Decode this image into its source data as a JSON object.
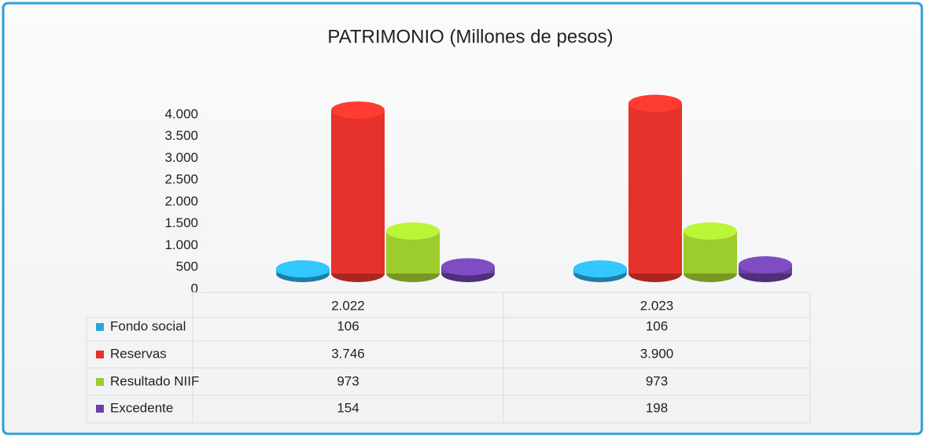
{
  "chart_data": {
    "type": "bar",
    "title": "PATRIMONIO (Millones de pesos)",
    "categories": [
      "2.022",
      "2.023"
    ],
    "series": [
      {
        "name": "Fondo social",
        "color": "#2aa6dc",
        "values": [
          106,
          106
        ]
      },
      {
        "name": "Reservas",
        "color": "#e5322a",
        "values": [
          3746,
          3900
        ],
        "value_labels": [
          "3.746",
          "3.900"
        ]
      },
      {
        "name": "Resultado NIIF",
        "color": "#9ccc2e",
        "values": [
          973,
          973
        ]
      },
      {
        "name": "Excedente",
        "color": "#6b3fa3",
        "values": [
          154,
          198
        ]
      }
    ],
    "ylim": [
      0,
      4000
    ],
    "yticks": [
      0,
      500,
      {
        "value": 1000,
        "label": "1.000"
      },
      {
        "value": 1500,
        "label": "1.500"
      },
      {
        "value": 2000,
        "label": "2.000"
      },
      {
        "value": 2500,
        "label": "2.500"
      },
      {
        "value": 3000,
        "label": "3.000"
      },
      {
        "value": 3500,
        "label": "3.500"
      },
      {
        "value": 4000,
        "label": "4.000"
      }
    ]
  }
}
